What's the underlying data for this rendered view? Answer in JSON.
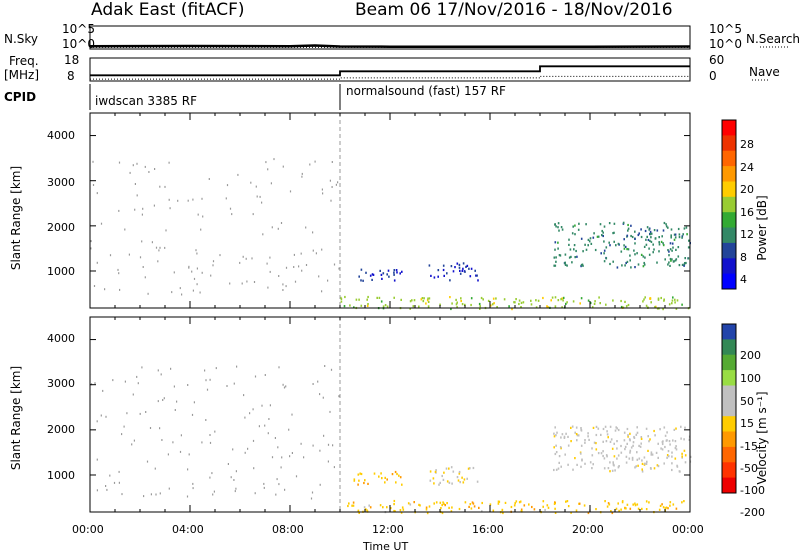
{
  "header": {
    "title": "Adak East (fitACF)",
    "beam_info": "Beam 06  17/Nov/2016 - 18/Nov/2016"
  },
  "panels": {
    "nsky_label": "N.Sky",
    "nsky_ticks": [
      "10^5",
      "10^0"
    ],
    "nsearch_label": "N.Search",
    "nsearch_ticks_right": [
      "10^5",
      "10^0"
    ],
    "freq_label": "Freq.",
    "freq_unit": "[MHz]",
    "freq_ticks": [
      "18",
      "8"
    ],
    "nave_label": "Nave",
    "nave_ticks": [
      "60",
      "0"
    ],
    "cpid_label": "CPID",
    "cpid_segments": [
      {
        "label": "iwdscan 3385 RF",
        "start_hour": 0,
        "end_hour": 10
      },
      {
        "label": "normalsound (fast) 157 RF",
        "start_hour": 10,
        "end_hour": 24
      }
    ]
  },
  "axes": {
    "y_label": "Slant Range [km]",
    "y_ticks": [
      "4000",
      "3000",
      "2000",
      "1000"
    ],
    "x_label": "Time UT",
    "x_ticks": [
      "00:00",
      "04:00",
      "08:00",
      "12:00",
      "16:00",
      "20:00",
      "00:00"
    ]
  },
  "colorbars": {
    "power": {
      "label": "Power [dB]",
      "ticks": [
        "28",
        "24",
        "20",
        "16",
        "12",
        "8",
        "4"
      ],
      "colors": [
        "#ff0000",
        "#ee3300",
        "#ff6600",
        "#ff9900",
        "#ffcc00",
        "#99cc33",
        "#33aa33",
        "#338866",
        "#224499",
        "#1111cc",
        "#0000ff"
      ]
    },
    "velocity": {
      "label": "Velocity [m s⁻¹]",
      "ticks": [
        "200",
        "100",
        "50",
        "15",
        "-15",
        "-50",
        "-100",
        "-200"
      ],
      "colors": [
        "#2244aa",
        "#338855",
        "#55aa33",
        "#99dd44",
        "#c0c0c0",
        "#c0c0c0",
        "#ffcc00",
        "#ff9900",
        "#ff6600",
        "#ff3300",
        "#ee0000"
      ]
    }
  },
  "chart_data": [
    {
      "type": "line",
      "title": "N.Sky / N.Search",
      "x_range_hours": [
        0,
        24
      ],
      "series": [
        {
          "name": "N.Sky",
          "x": [
            0,
            4,
            8,
            9,
            10,
            12,
            16,
            20,
            24
          ],
          "values": [
            0.6,
            0.65,
            0.6,
            0.75,
            0.55,
            0.5,
            0.5,
            0.5,
            0.55
          ]
        }
      ]
    },
    {
      "type": "line",
      "title": "Freq. / Nave",
      "x_range_hours": [
        0,
        24
      ],
      "series": [
        {
          "name": "Freq. [MHz]",
          "x": [
            0,
            10,
            10,
            18,
            18,
            24
          ],
          "values": [
            10.5,
            10.5,
            12.2,
            12.2,
            14.4,
            14.4
          ]
        },
        {
          "name": "Nave",
          "x": [
            0,
            10,
            10,
            18,
            18,
            24
          ],
          "values": [
            5,
            5,
            8,
            8,
            12,
            12
          ]
        }
      ]
    },
    {
      "type": "heatmap",
      "ylabel": "Slant Range [km]",
      "xlabel": "Time UT",
      "colorbar": "Power [dB]",
      "ylim": [
        180,
        4500
      ],
      "regions": [
        {
          "x0": 10,
          "x1": 24,
          "y0": 180,
          "y1": 450,
          "value": 16
        },
        {
          "x0": 10.5,
          "x1": 12.5,
          "y0": 800,
          "y1": 1100,
          "value": 6
        },
        {
          "x0": 13.5,
          "x1": 15.5,
          "y0": 800,
          "y1": 1200,
          "value": 6
        },
        {
          "x0": 18.5,
          "x1": 24,
          "y0": 1100,
          "y1": 2100,
          "value": 10
        }
      ]
    },
    {
      "type": "heatmap",
      "ylabel": "Slant Range [km]",
      "xlabel": "Time UT",
      "colorbar": "Velocity [m s⁻¹]",
      "ylim": [
        180,
        4500
      ],
      "regions": [
        {
          "x0": 10,
          "x1": 24,
          "y0": 180,
          "y1": 450,
          "value": -50
        },
        {
          "x0": 10.5,
          "x1": 12.5,
          "y0": 800,
          "y1": 1100,
          "value": -50
        },
        {
          "x0": 13.5,
          "x1": 15.5,
          "y0": 800,
          "y1": 1200,
          "value": -15
        },
        {
          "x0": 18.5,
          "x1": 24,
          "y0": 1100,
          "y1": 2100,
          "value": 0
        }
      ]
    }
  ]
}
